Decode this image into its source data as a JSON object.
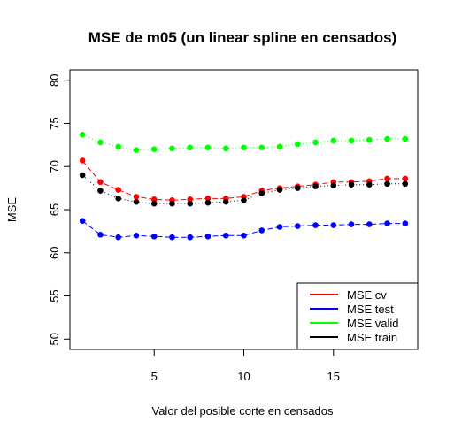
{
  "chart_data": {
    "type": "line",
    "title": "MSE de m05 (un linear spline en censados)",
    "xlabel": "Valor del posible corte en censados",
    "ylabel": "MSE",
    "xlim": [
      0.3,
      19.7
    ],
    "ylim": [
      48.8,
      81.2
    ],
    "x_ticks": [
      5,
      10,
      15
    ],
    "y_ticks": [
      50,
      55,
      60,
      65,
      70,
      75,
      80
    ],
    "grid": false,
    "legend_position": "bottom-right",
    "x": [
      1,
      2,
      3,
      4,
      5,
      6,
      7,
      8,
      9,
      10,
      11,
      12,
      13,
      14,
      15,
      16,
      17,
      18,
      19
    ],
    "series": [
      {
        "name": "MSE cv",
        "color": "#ff0000",
        "line_style": "dashed",
        "values": [
          70.7,
          68.2,
          67.3,
          66.5,
          66.2,
          66.1,
          66.2,
          66.3,
          66.3,
          66.5,
          67.2,
          67.5,
          67.7,
          67.9,
          68.2,
          68.2,
          68.3,
          68.6,
          68.6
        ]
      },
      {
        "name": "MSE test",
        "color": "#0000ff",
        "line_style": "dashed",
        "values": [
          63.7,
          62.1,
          61.8,
          62.0,
          61.9,
          61.8,
          61.8,
          61.9,
          62.0,
          62.0,
          62.6,
          63.0,
          63.1,
          63.2,
          63.2,
          63.3,
          63.3,
          63.4,
          63.4
        ]
      },
      {
        "name": "MSE valid",
        "color": "#00ff00",
        "line_style": "dotted",
        "values": [
          73.7,
          72.8,
          72.3,
          71.9,
          72.0,
          72.1,
          72.2,
          72.2,
          72.1,
          72.2,
          72.2,
          72.3,
          72.6,
          72.8,
          73.0,
          73.0,
          73.1,
          73.2,
          73.2
        ]
      },
      {
        "name": "MSE train",
        "color": "#000000",
        "line_style": "dotted",
        "values": [
          69.0,
          67.2,
          66.3,
          65.9,
          65.7,
          65.7,
          65.7,
          65.8,
          65.9,
          66.1,
          66.9,
          67.3,
          67.5,
          67.7,
          67.8,
          67.9,
          67.9,
          68.0,
          68.0
        ]
      }
    ]
  }
}
